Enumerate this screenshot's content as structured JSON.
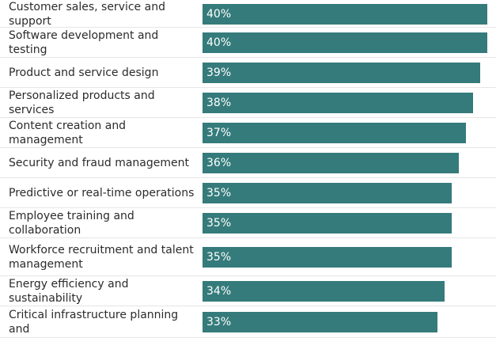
{
  "chart_data": {
    "type": "bar",
    "orientation": "horizontal",
    "categories": [
      "Customer sales, service and support",
      "Software development and testing",
      "Product and service design",
      "Personalized products and services",
      "Content creation and management",
      "Security and fraud management",
      "Predictive or real-time operations",
      "Employee training and collaboration",
      "Workforce recruitment and talent management",
      "Energy efficiency and sustainability",
      "Critical infrastructure planning and"
    ],
    "values": [
      40,
      40,
      39,
      38,
      37,
      36,
      35,
      35,
      35,
      34,
      33
    ],
    "value_labels": [
      "40%",
      "40%",
      "39%",
      "38%",
      "37%",
      "36%",
      "35%",
      "35%",
      "35%",
      "34%",
      "33%"
    ],
    "xlim": [
      0,
      40
    ],
    "grid": false,
    "colors": {
      "bar": "#357b7b",
      "label_text": "#2b2b2b",
      "bar_text": "#ffffff",
      "divider": "#e6e6e6"
    }
  }
}
